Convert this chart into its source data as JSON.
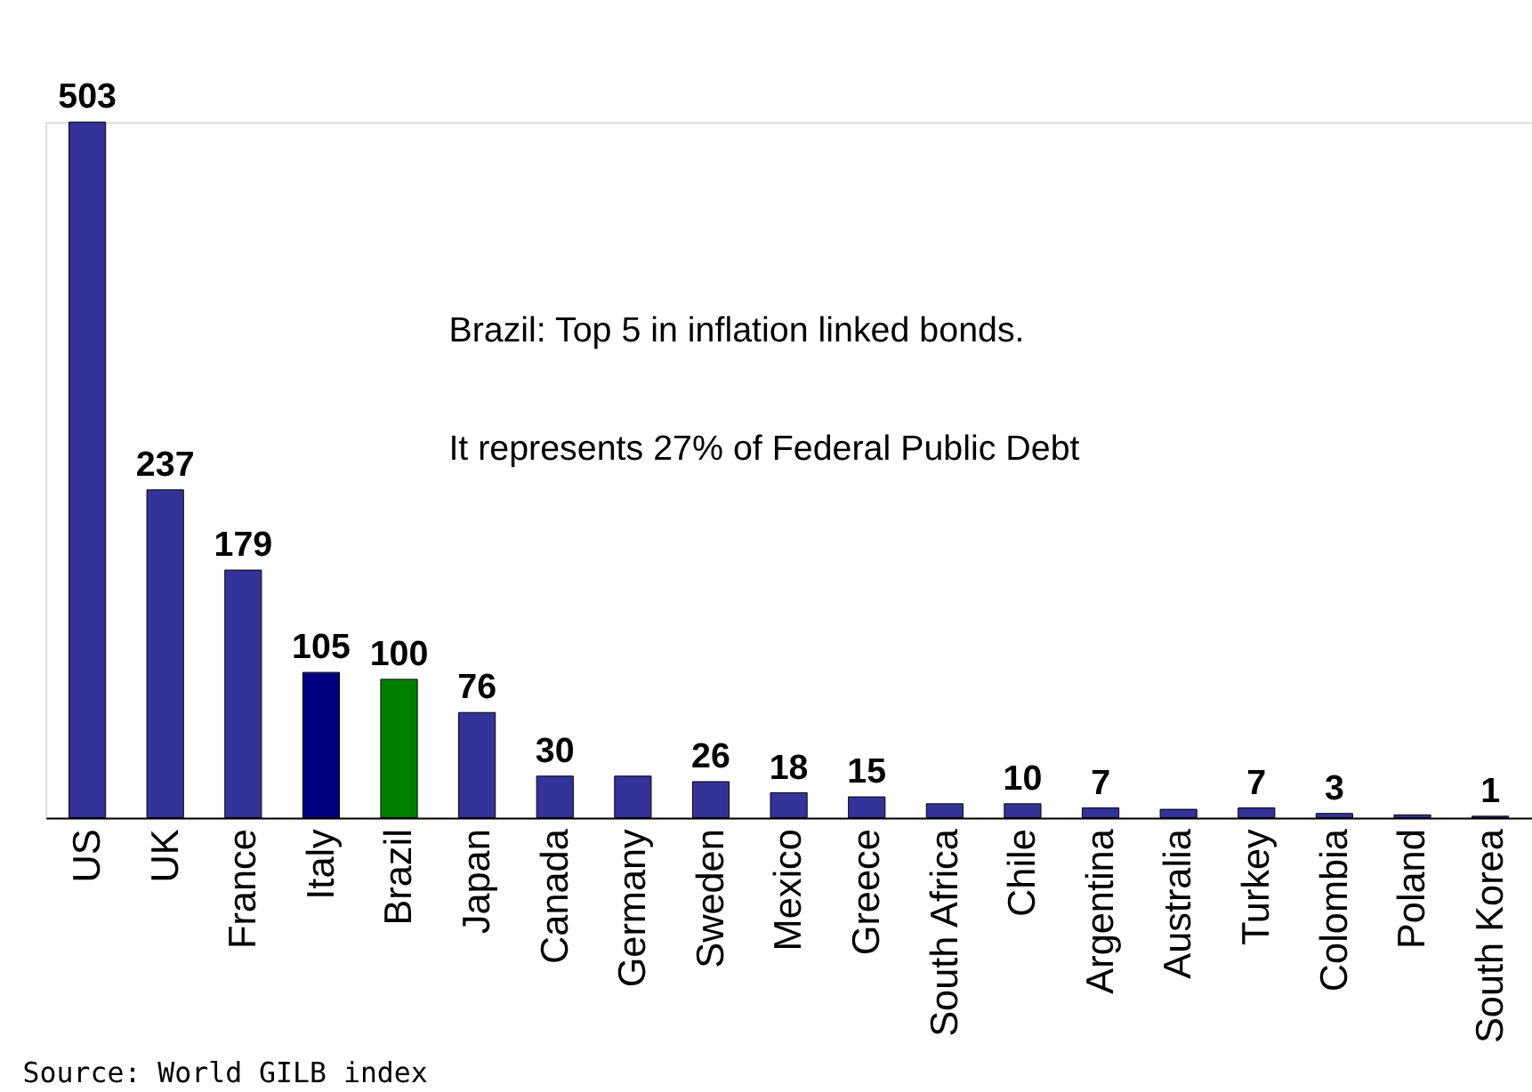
{
  "chart_data": {
    "type": "bar",
    "categories": [
      "US",
      "UK",
      "France",
      "Italy",
      "Brazil",
      "Japan",
      "Canada",
      "Germany",
      "Sweden",
      "Mexico",
      "Greece",
      "South Africa",
      "Chile",
      "Argentina",
      "Australia",
      "Turkey",
      "Colombia",
      "Poland",
      "South Korea"
    ],
    "values": [
      503,
      237,
      179,
      105,
      100,
      76,
      30,
      30,
      26,
      18,
      15,
      10,
      10,
      7,
      6,
      7,
      3,
      2,
      1
    ],
    "colors": [
      "#333399",
      "#333399",
      "#333399",
      "#000080",
      "#008000",
      "#333399",
      "#333399",
      "#333399",
      "#333399",
      "#333399",
      "#333399",
      "#333399",
      "#333399",
      "#333399",
      "#333399",
      "#333399",
      "#333399",
      "#333399",
      "#333399"
    ],
    "value_labels": [
      "503",
      "237",
      "179",
      "105",
      "100",
      "76",
      "30",
      null,
      "26",
      "18",
      "15",
      null,
      "10",
      "7",
      null,
      "7",
      "3",
      null,
      "1"
    ],
    "annotations": [
      "Brazil: Top 5 in inflation linked bonds.",
      "It represents 27% of Federal Public Debt",
      "Source: World GILB index"
    ]
  }
}
